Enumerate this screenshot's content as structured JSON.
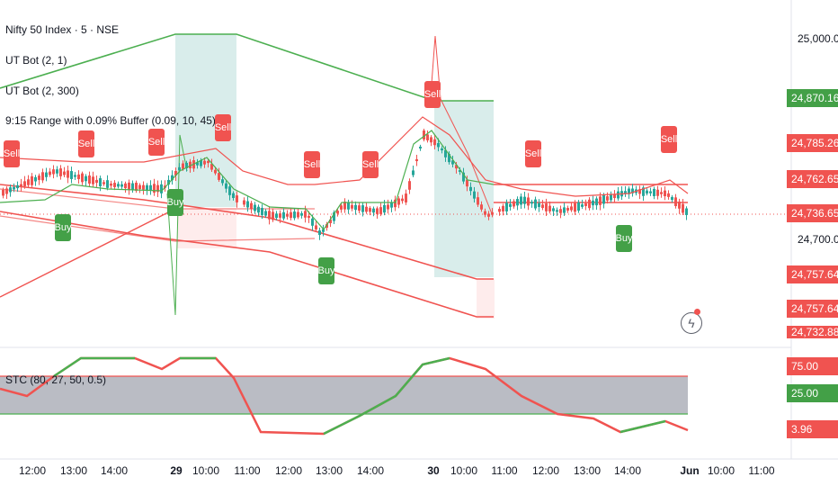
{
  "header": {
    "symbol": "Nifty 50 Index · 5 · NSE"
  },
  "legends": [
    {
      "id": "ut1",
      "label": "UT Bot (2, 1)"
    },
    {
      "id": "ut2",
      "label": "UT Bot (2, 300)"
    },
    {
      "id": "range",
      "label": "9:15 Range with 0.09% Buffer (0.09, 10, 45)"
    },
    {
      "id": "stc",
      "label": "STC (80, 27, 50, 0.5)"
    }
  ],
  "price_axis": {
    "ticks": [
      "25,000.00",
      "24,700.00"
    ]
  },
  "price_boxes": [
    {
      "text": "24,870.16",
      "color": "#43a047"
    },
    {
      "text": "24,785.26",
      "color": "#f05350"
    },
    {
      "text": "24,762.65",
      "color": "#f05350"
    },
    {
      "text": "24,736.65",
      "color": "#f05350"
    },
    {
      "text": "24,757.64",
      "color": "#f05350"
    },
    {
      "text": "24,757.64",
      "color": "#f05350"
    },
    {
      "text": "24,732.88",
      "color": "#f05350"
    }
  ],
  "stc_axis": {
    "boxes": [
      {
        "text": "75.00",
        "color": "#f05350"
      },
      {
        "text": "25.00",
        "color": "#43a047"
      },
      {
        "text": "3.96",
        "color": "#f05350"
      }
    ]
  },
  "time_axis": {
    "labels": [
      "12:00",
      "13:00",
      "14:00",
      "29",
      "10:00",
      "11:00",
      "12:00",
      "13:00",
      "14:00",
      "30",
      "10:00",
      "11:00",
      "12:00",
      "13:00",
      "14:00",
      "Jun",
      "10:00",
      "11:00"
    ]
  },
  "signals": {
    "sell_label": "Sell",
    "buy_label": "Buy"
  },
  "icons": {
    "alert": "lightning-icon"
  },
  "colors": {
    "bull": "#26a69a",
    "bear": "#ef5350",
    "green_line": "#4caf50",
    "red_line": "#f05350",
    "zone": "#cfe9e6"
  }
}
